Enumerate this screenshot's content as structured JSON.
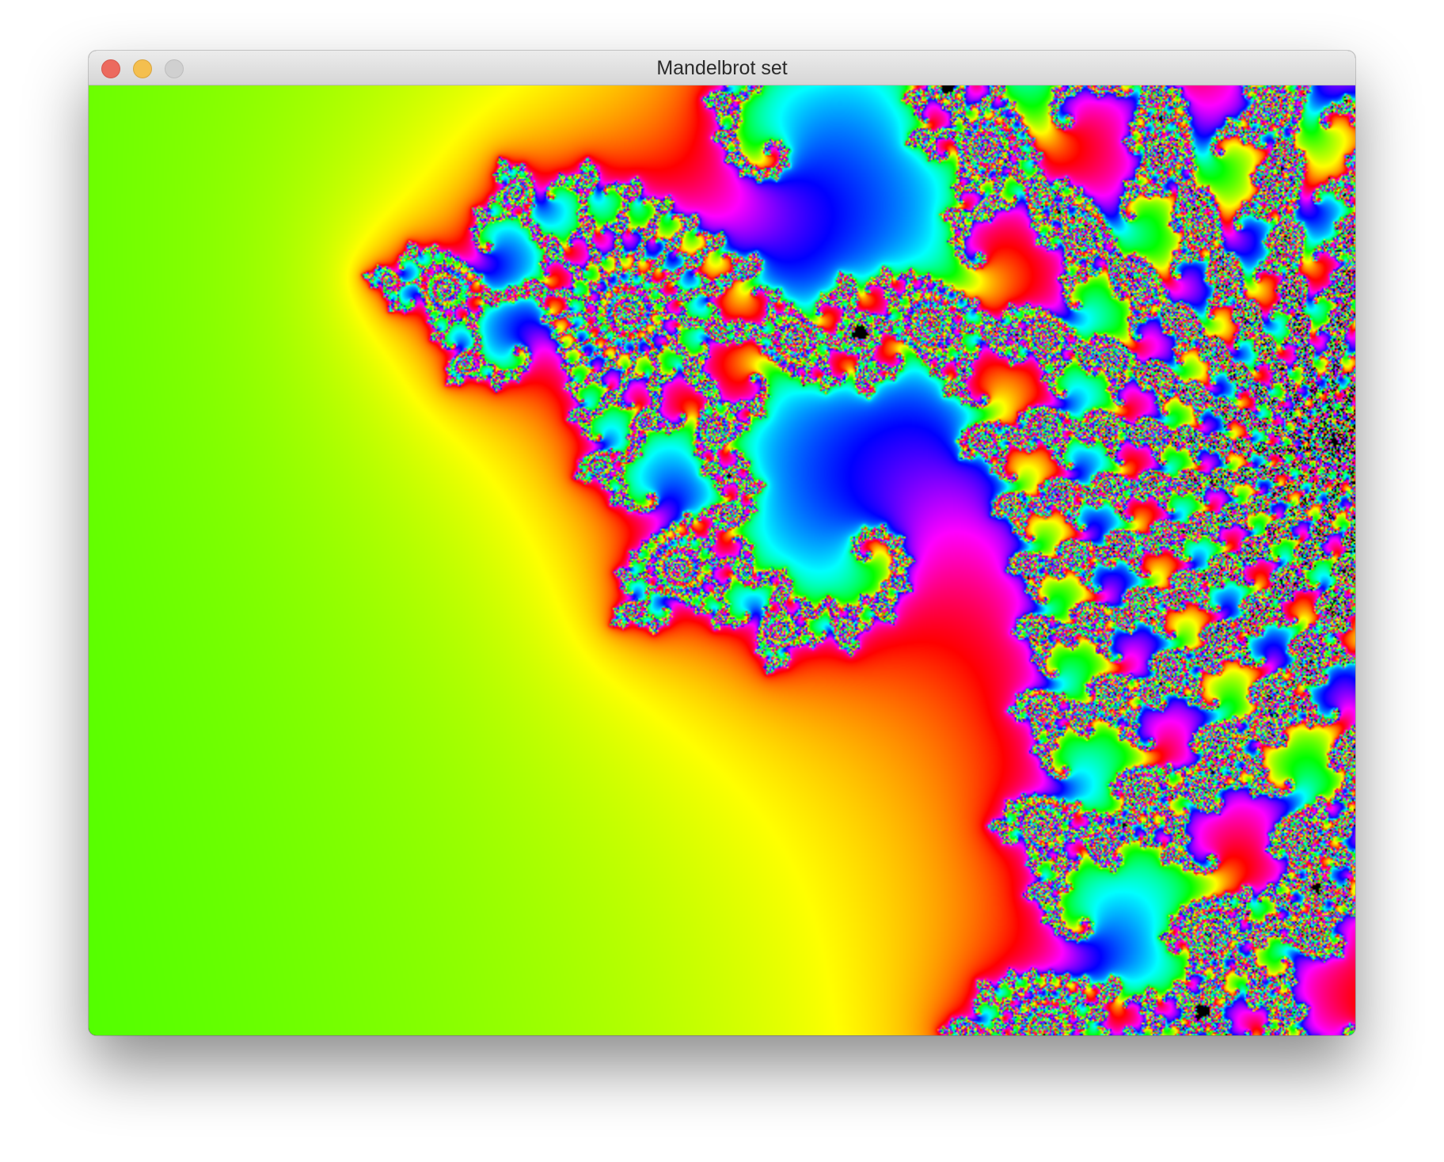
{
  "window": {
    "title": "Mandelbrot set",
    "buttons": {
      "close": "close",
      "minimize": "minimize",
      "zoom": "zoom"
    }
  },
  "colors": {
    "close": "#ec6a5e",
    "minimize": "#f4bf4f",
    "zoom": "#d0d0d0",
    "interior": "#000000"
  },
  "icons": [
    "close-icon",
    "minimize-icon",
    "zoom-icon"
  ]
}
